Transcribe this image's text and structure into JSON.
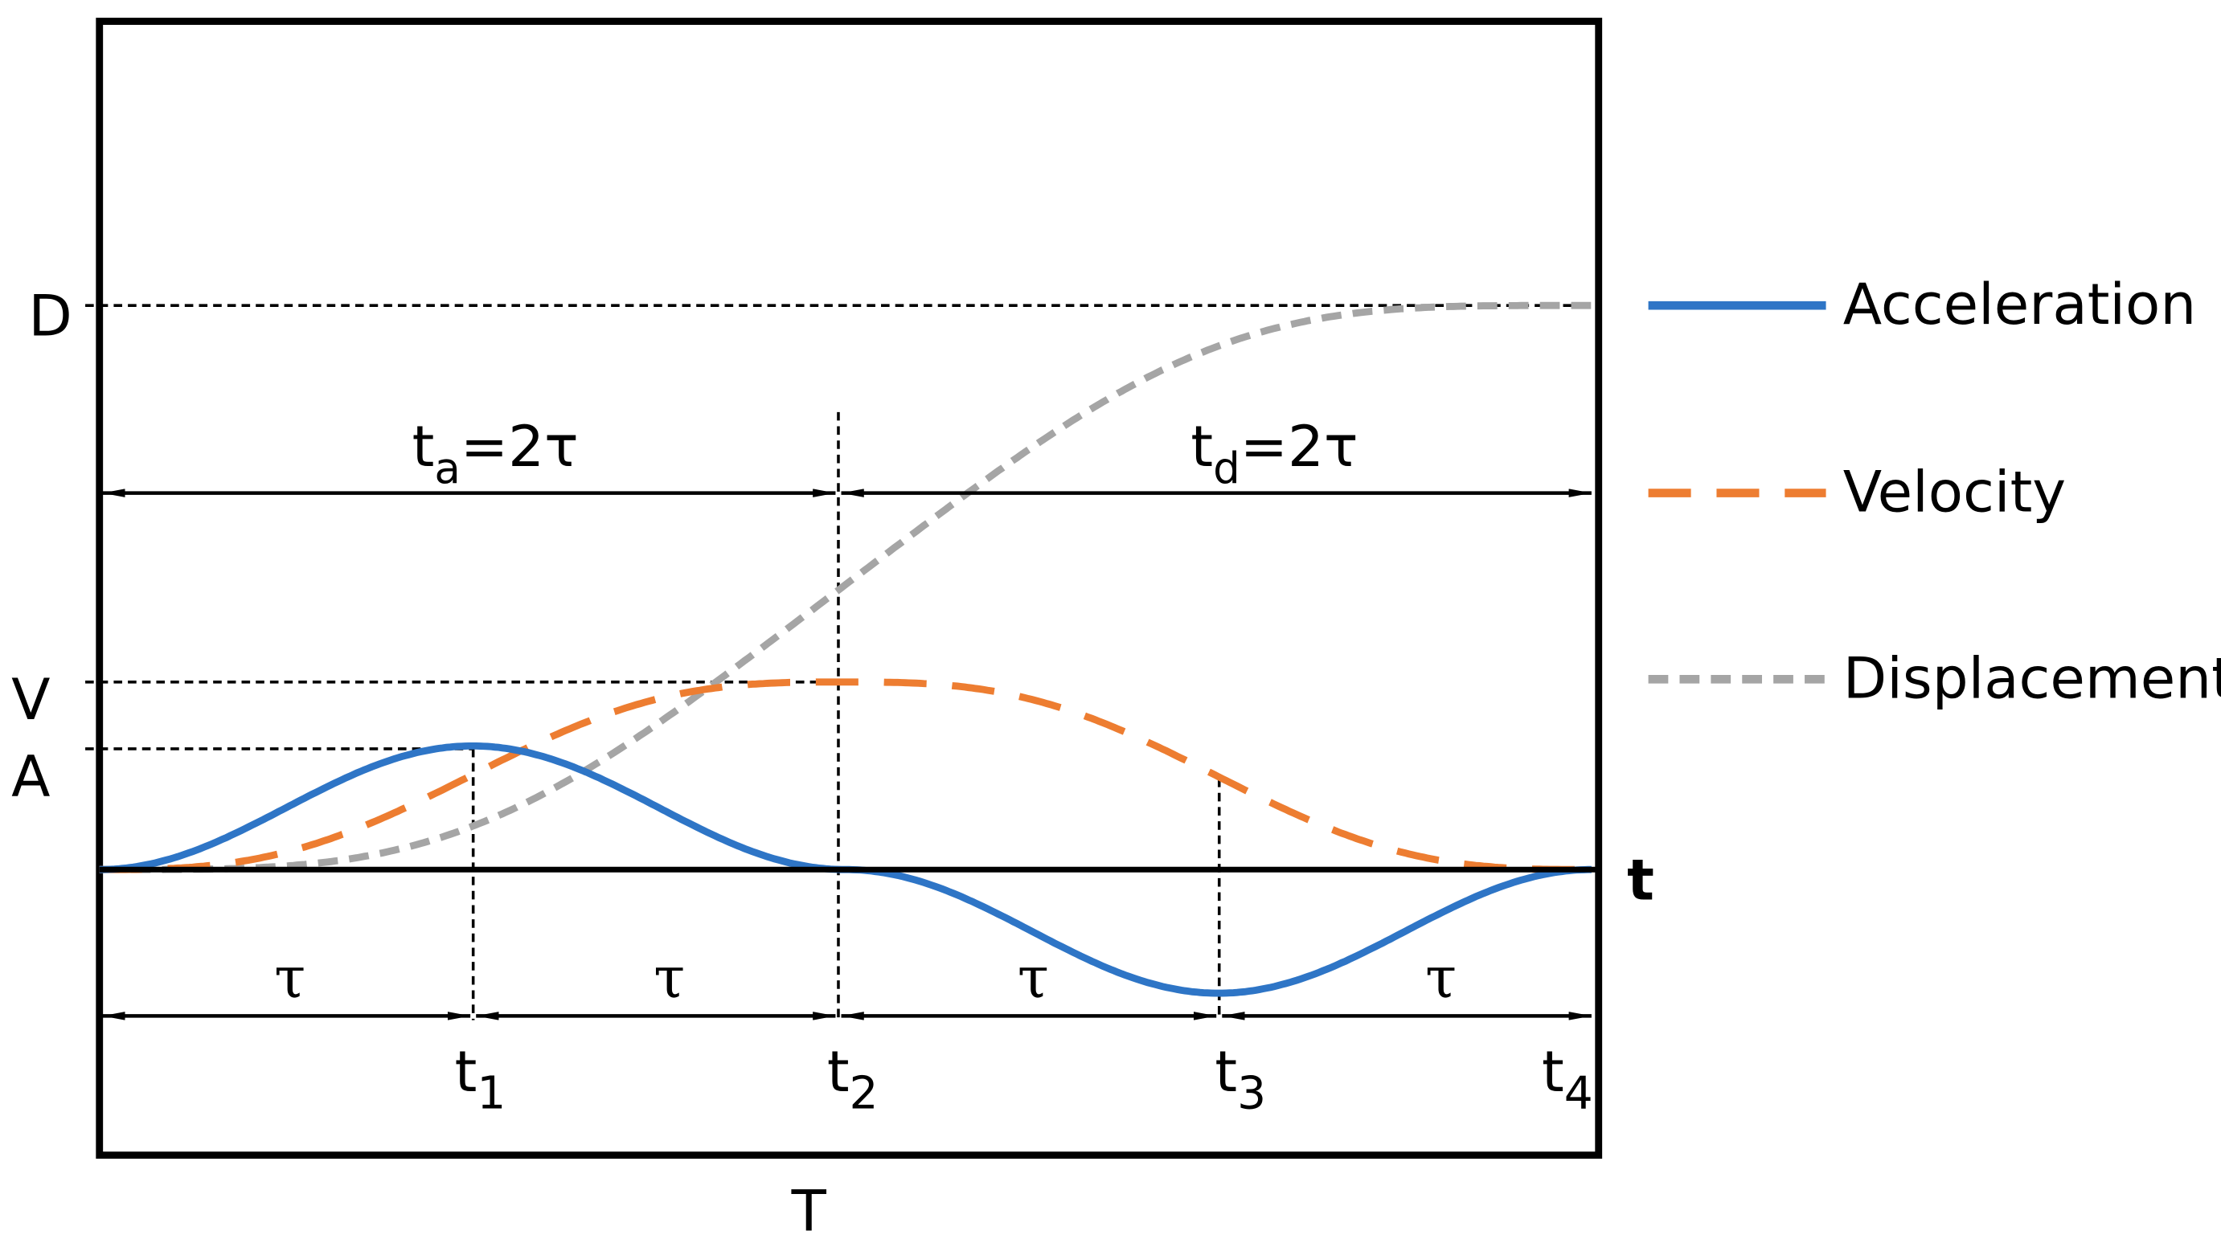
{
  "axis_labels": {
    "D": "D",
    "V": "V",
    "A": "A",
    "t": "t",
    "T": "T"
  },
  "intervals": [
    {
      "base": "t",
      "sub": "a",
      "rest": "=2τ"
    },
    {
      "base": "t",
      "sub": "d",
      "rest": "=2τ"
    }
  ],
  "taus": [
    "τ",
    "τ",
    "τ",
    "τ"
  ],
  "time_points": [
    {
      "base": "t",
      "sub": "1"
    },
    {
      "base": "t",
      "sub": "2"
    },
    {
      "base": "t",
      "sub": "3"
    },
    {
      "base": "t",
      "sub": "4"
    }
  ],
  "legend": [
    "Acceleration",
    "Velocity",
    "Displacement"
  ]
}
